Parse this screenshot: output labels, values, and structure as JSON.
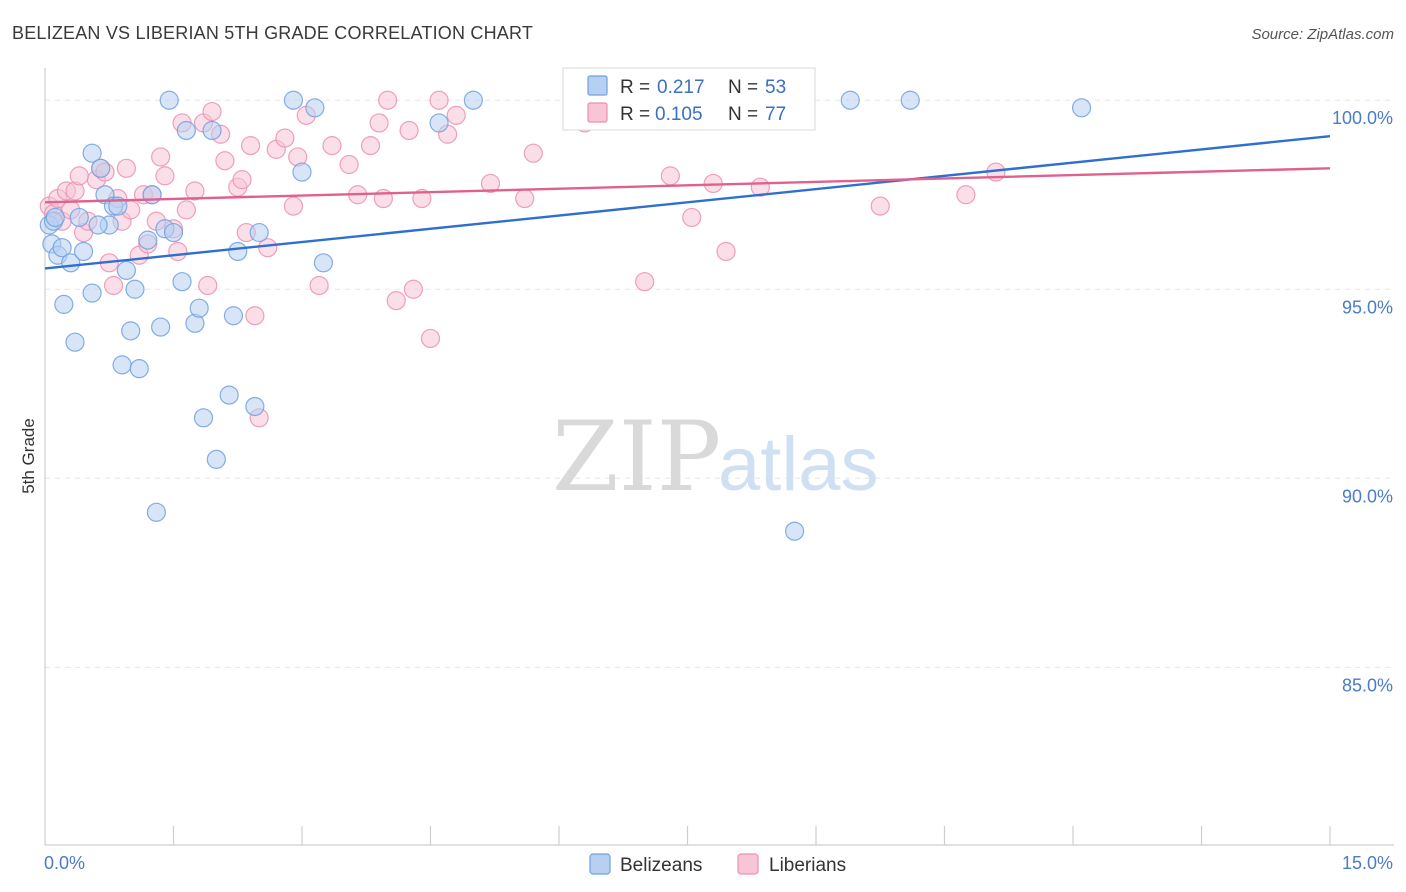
{
  "chart_data": {
    "type": "scatter",
    "title": "BELIZEAN VS LIBERIAN 5TH GRADE CORRELATION CHART",
    "source": "Source: ZipAtlas.com",
    "ylabel": "5th Grade",
    "xlim": [
      0,
      15
    ],
    "ylim": [
      80.3,
      100.8
    ],
    "x_tick_labels": [
      "0.0%",
      "15.0%"
    ],
    "y_ticks": [
      {
        "value": 100,
        "label": "100.0%"
      },
      {
        "value": 95,
        "label": "95.0%"
      },
      {
        "value": 90,
        "label": "90.0%"
      },
      {
        "value": 85,
        "label": "85.0%"
      }
    ],
    "watermark": {
      "zip": "ZIP",
      "atlas": "atlas"
    },
    "series": [
      {
        "name": "Belizeans",
        "color": "#6fa0e0",
        "fill": "#b7cff0",
        "line_color": "#2f6fd0",
        "R": "0.217",
        "N": "53",
        "trend": {
          "x0": 0,
          "y0": 95.55,
          "x1": 15,
          "y1": 99.05
        },
        "points": [
          [
            0.05,
            96.7
          ],
          [
            0.08,
            96.2
          ],
          [
            0.1,
            96.8
          ],
          [
            0.15,
            95.9
          ],
          [
            0.2,
            96.1
          ],
          [
            0.22,
            94.6
          ],
          [
            0.3,
            95.7
          ],
          [
            0.35,
            93.6
          ],
          [
            0.4,
            96.9
          ],
          [
            0.45,
            96.0
          ],
          [
            0.55,
            94.9
          ],
          [
            0.55,
            98.6
          ],
          [
            0.65,
            98.2
          ],
          [
            0.7,
            97.5
          ],
          [
            0.75,
            96.7
          ],
          [
            0.8,
            97.2
          ],
          [
            0.85,
            97.2
          ],
          [
            0.9,
            93.0
          ],
          [
            0.95,
            95.5
          ],
          [
            1.0,
            93.9
          ],
          [
            1.05,
            95.0
          ],
          [
            1.1,
            92.9
          ],
          [
            1.2,
            96.3
          ],
          [
            1.25,
            97.5
          ],
          [
            1.3,
            89.1
          ],
          [
            1.35,
            94.0
          ],
          [
            1.4,
            96.6
          ],
          [
            1.45,
            100.0
          ],
          [
            1.5,
            96.5
          ],
          [
            1.6,
            95.2
          ],
          [
            1.65,
            99.2
          ],
          [
            1.75,
            94.1
          ],
          [
            1.8,
            94.5
          ],
          [
            1.85,
            91.6
          ],
          [
            1.95,
            99.2
          ],
          [
            2.0,
            90.5
          ],
          [
            2.15,
            92.2
          ],
          [
            2.2,
            94.3
          ],
          [
            2.25,
            96.0
          ],
          [
            2.45,
            91.9
          ],
          [
            2.5,
            96.5
          ],
          [
            2.9,
            100.0
          ],
          [
            3.0,
            98.1
          ],
          [
            3.15,
            99.8
          ],
          [
            3.25,
            95.7
          ],
          [
            4.6,
            99.4
          ],
          [
            5.0,
            100.0
          ],
          [
            8.75,
            88.6
          ],
          [
            9.4,
            100.0
          ],
          [
            10.1,
            100.0
          ],
          [
            12.1,
            99.8
          ],
          [
            0.12,
            96.9
          ],
          [
            0.62,
            96.7
          ]
        ]
      },
      {
        "name": "Liberians",
        "color": "#ec8fb0",
        "fill": "#f7c5d6",
        "line_color": "#e0608e",
        "R": "0.105",
        "N": "77",
        "trend": {
          "x0": 0,
          "y0": 97.3,
          "x1": 15,
          "y1": 98.2
        },
        "points": [
          [
            0.05,
            97.2
          ],
          [
            0.1,
            97.0
          ],
          [
            0.15,
            97.4
          ],
          [
            0.2,
            96.8
          ],
          [
            0.25,
            97.6
          ],
          [
            0.3,
            97.1
          ],
          [
            0.35,
            97.6
          ],
          [
            0.45,
            96.5
          ],
          [
            0.5,
            96.8
          ],
          [
            0.6,
            97.9
          ],
          [
            0.65,
            98.2
          ],
          [
            0.7,
            98.1
          ],
          [
            0.75,
            95.7
          ],
          [
            0.8,
            95.1
          ],
          [
            0.9,
            96.8
          ],
          [
            0.95,
            98.2
          ],
          [
            1.0,
            97.1
          ],
          [
            1.1,
            95.9
          ],
          [
            1.15,
            97.5
          ],
          [
            1.2,
            96.2
          ],
          [
            1.3,
            96.8
          ],
          [
            1.35,
            98.5
          ],
          [
            1.4,
            98.0
          ],
          [
            1.5,
            96.6
          ],
          [
            1.55,
            96.0
          ],
          [
            1.6,
            99.4
          ],
          [
            1.65,
            97.1
          ],
          [
            1.75,
            97.6
          ],
          [
            1.85,
            99.4
          ],
          [
            1.9,
            95.1
          ],
          [
            1.95,
            99.7
          ],
          [
            2.05,
            99.1
          ],
          [
            2.1,
            98.4
          ],
          [
            2.25,
            97.7
          ],
          [
            2.3,
            97.9
          ],
          [
            2.35,
            96.5
          ],
          [
            2.4,
            98.8
          ],
          [
            2.45,
            94.3
          ],
          [
            2.5,
            91.6
          ],
          [
            2.6,
            96.1
          ],
          [
            2.7,
            98.7
          ],
          [
            2.8,
            99.0
          ],
          [
            2.9,
            97.2
          ],
          [
            2.95,
            98.5
          ],
          [
            3.05,
            99.6
          ],
          [
            3.2,
            95.1
          ],
          [
            3.35,
            98.8
          ],
          [
            3.55,
            98.3
          ],
          [
            3.65,
            97.5
          ],
          [
            3.8,
            98.8
          ],
          [
            3.9,
            99.4
          ],
          [
            3.95,
            97.4
          ],
          [
            4.0,
            100.0
          ],
          [
            4.1,
            94.7
          ],
          [
            4.25,
            99.2
          ],
          [
            4.3,
            95.0
          ],
          [
            4.4,
            97.4
          ],
          [
            4.5,
            93.7
          ],
          [
            4.6,
            100.0
          ],
          [
            4.7,
            99.1
          ],
          [
            4.8,
            99.6
          ],
          [
            5.2,
            97.8
          ],
          [
            5.6,
            97.4
          ],
          [
            5.7,
            98.6
          ],
          [
            6.3,
            99.4
          ],
          [
            7.0,
            95.2
          ],
          [
            7.3,
            98.0
          ],
          [
            7.55,
            96.9
          ],
          [
            7.8,
            97.8
          ],
          [
            7.95,
            96.0
          ],
          [
            8.35,
            97.7
          ],
          [
            9.75,
            97.2
          ],
          [
            10.75,
            97.5
          ],
          [
            11.1,
            98.1
          ],
          [
            0.4,
            98.0
          ],
          [
            1.25,
            97.5
          ],
          [
            0.85,
            97.4
          ]
        ]
      }
    ]
  }
}
